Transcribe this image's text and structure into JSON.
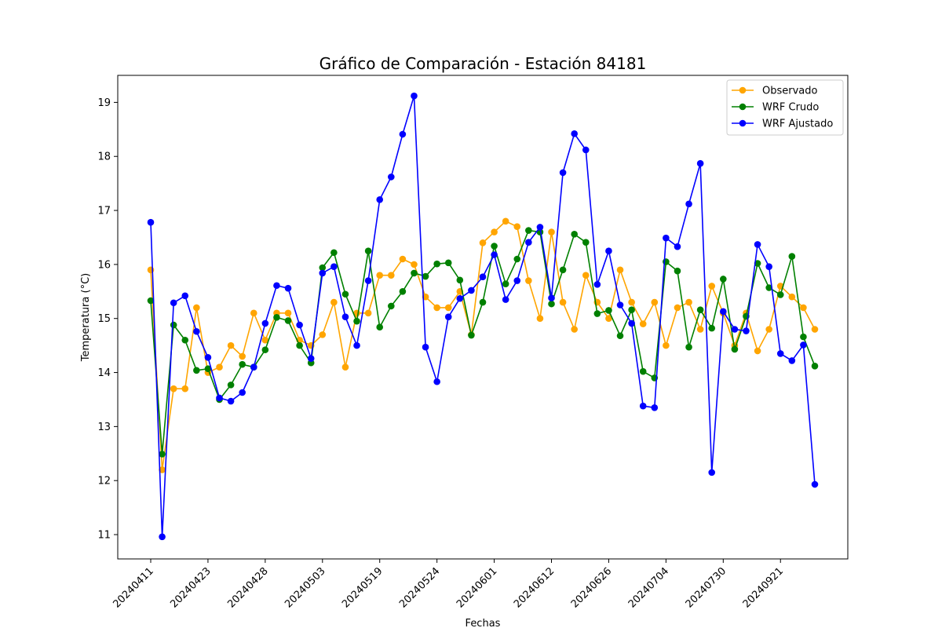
{
  "chart_data": {
    "type": "line",
    "title": "Gráfico de Comparación - Estación 84181",
    "xlabel": "Fechas",
    "ylabel": "Temperatura (°C)",
    "ylim": [
      10.55,
      19.5
    ],
    "yticks": [
      11,
      12,
      13,
      14,
      15,
      16,
      17,
      18,
      19
    ],
    "xticks": [
      "20240411",
      "20240423",
      "20240428",
      "20240503",
      "20240519",
      "20240524",
      "20240601",
      "20240612",
      "20240626",
      "20240704",
      "20240730",
      "20240921"
    ],
    "xtick_index_step": 5,
    "grid": false,
    "legend_position": "upper right",
    "series": [
      {
        "name": "Observado",
        "color": "#ffa500",
        "values": [
          15.9,
          12.2,
          13.7,
          13.7,
          15.2,
          14.0,
          14.1,
          14.5,
          14.3,
          15.1,
          14.6,
          15.1,
          15.1,
          14.6,
          14.5,
          14.7,
          15.3,
          14.1,
          15.1,
          15.1,
          15.8,
          15.8,
          16.1,
          16.0,
          15.4,
          15.2,
          15.2,
          15.5,
          14.7,
          16.4,
          16.6,
          16.8,
          16.7,
          15.7,
          15.0,
          16.6,
          15.3,
          14.8,
          15.8,
          15.3,
          15.0,
          15.9,
          15.3,
          14.9,
          15.3,
          14.5,
          15.2,
          15.3,
          14.8,
          15.6,
          15.1,
          14.5,
          15.1,
          14.4,
          14.8,
          15.6,
          15.4,
          15.2,
          14.8
        ]
      },
      {
        "name": "WRF Crudo",
        "color": "#008000",
        "values": [
          15.33,
          12.49,
          14.88,
          14.6,
          14.04,
          14.07,
          13.5,
          13.77,
          14.15,
          14.1,
          14.42,
          15.02,
          14.96,
          14.5,
          14.18,
          15.94,
          16.22,
          15.45,
          14.95,
          16.25,
          14.84,
          15.23,
          15.5,
          15.84,
          15.78,
          16.01,
          16.03,
          15.71,
          14.69,
          15.3,
          16.34,
          15.64,
          16.1,
          16.63,
          16.6,
          15.27,
          15.9,
          16.56,
          16.41,
          15.09,
          15.15,
          14.68,
          15.16,
          14.02,
          13.9,
          16.05,
          15.88,
          14.47,
          15.16,
          14.82,
          15.73,
          14.43,
          15.04,
          16.02,
          15.57,
          15.44,
          16.15,
          14.66,
          14.12
        ]
      },
      {
        "name": "WRF Ajustado",
        "color": "#0000ff",
        "values": [
          16.78,
          10.96,
          15.29,
          15.42,
          14.76,
          14.28,
          13.53,
          13.47,
          13.63,
          14.1,
          14.91,
          15.61,
          15.56,
          14.88,
          14.26,
          15.84,
          15.96,
          15.03,
          14.5,
          15.7,
          17.2,
          17.62,
          18.41,
          19.12,
          14.47,
          13.83,
          15.03,
          15.37,
          15.52,
          15.77,
          16.18,
          15.35,
          15.7,
          16.41,
          16.69,
          15.38,
          17.7,
          18.42,
          18.12,
          15.63,
          16.25,
          15.25,
          14.91,
          13.38,
          13.35,
          16.49,
          16.33,
          17.12,
          17.87,
          12.15,
          15.13,
          14.8,
          14.77,
          16.37,
          15.96,
          14.35,
          14.22,
          14.51,
          11.93
        ]
      }
    ]
  }
}
